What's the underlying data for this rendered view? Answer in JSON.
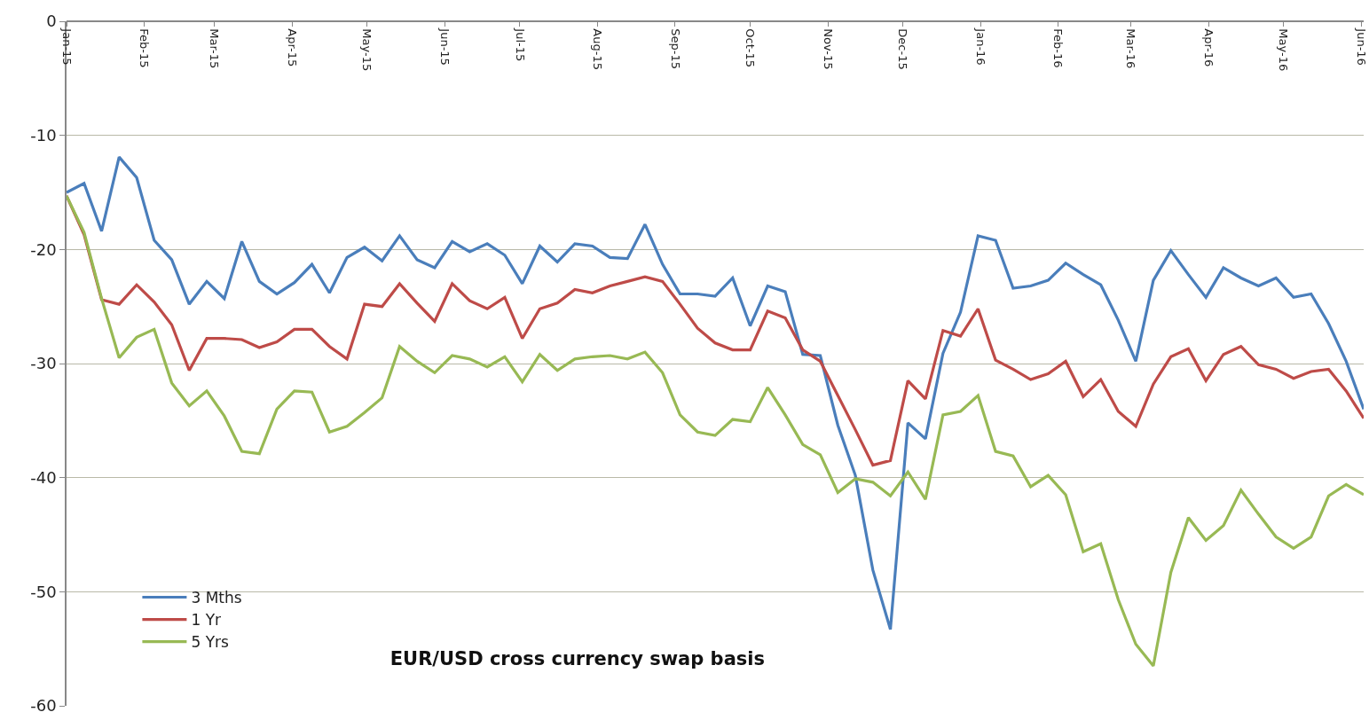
{
  "chart_data": {
    "type": "line",
    "title": "EUR/USD cross currency swap basis",
    "x": [
      "2015-01-01",
      "2015-01-08",
      "2015-01-15",
      "2015-01-22",
      "2015-01-29",
      "2015-02-05",
      "2015-02-12",
      "2015-02-19",
      "2015-02-26",
      "2015-03-05",
      "2015-03-12",
      "2015-03-19",
      "2015-03-26",
      "2015-04-02",
      "2015-04-09",
      "2015-04-16",
      "2015-04-23",
      "2015-04-30",
      "2015-05-07",
      "2015-05-14",
      "2015-05-21",
      "2015-05-28",
      "2015-06-04",
      "2015-06-11",
      "2015-06-18",
      "2015-06-25",
      "2015-07-02",
      "2015-07-09",
      "2015-07-16",
      "2015-07-23",
      "2015-07-30",
      "2015-08-06",
      "2015-08-13",
      "2015-08-20",
      "2015-08-27",
      "2015-09-03",
      "2015-09-10",
      "2015-09-17",
      "2015-09-24",
      "2015-10-01",
      "2015-10-08",
      "2015-10-15",
      "2015-10-22",
      "2015-10-29",
      "2015-11-05",
      "2015-11-12",
      "2015-11-19",
      "2015-11-26",
      "2015-12-03",
      "2015-12-10",
      "2015-12-17",
      "2015-12-24",
      "2015-12-31",
      "2016-01-07",
      "2016-01-14",
      "2016-01-21",
      "2016-01-28",
      "2016-02-04",
      "2016-02-11",
      "2016-02-18",
      "2016-02-25",
      "2016-03-03",
      "2016-03-10",
      "2016-03-17",
      "2016-03-24",
      "2016-03-31",
      "2016-04-07",
      "2016-04-14",
      "2016-04-21",
      "2016-04-28",
      "2016-05-05",
      "2016-05-12",
      "2016-05-19",
      "2016-05-26",
      "2016-06-02"
    ],
    "series": [
      {
        "name": "3 Mths",
        "color": "#4a7ebb",
        "values": [
          -15.0,
          -14.2,
          -18.4,
          -11.9,
          -13.7,
          -19.2,
          -20.9,
          -24.8,
          -22.8,
          -24.3,
          -19.3,
          -22.8,
          -23.9,
          -22.9,
          -21.3,
          -23.8,
          -20.7,
          -19.8,
          -21.0,
          -18.8,
          -20.9,
          -21.6,
          -19.3,
          -20.2,
          -19.5,
          -20.5,
          -23.0,
          -19.7,
          -21.1,
          -19.5,
          -19.7,
          -20.7,
          -20.8,
          -17.8,
          -21.3,
          -23.9,
          -23.9,
          -24.1,
          -22.5,
          -26.7,
          -23.2,
          -23.7,
          -29.2,
          -29.3,
          -35.4,
          -39.8,
          -48.1,
          -53.3,
          -35.2,
          -36.6,
          -29.1,
          -25.5,
          -18.8,
          -19.2,
          -23.4,
          -23.2,
          -22.7,
          -21.2,
          -22.2,
          -23.1,
          -26.2,
          -29.8,
          -22.7,
          -20.1,
          -22.2,
          -24.2,
          -21.6,
          -22.5,
          -23.2,
          -22.5,
          -24.2,
          -23.9,
          -26.5,
          -29.8,
          -34.0
        ]
      },
      {
        "name": "1 Yr",
        "color": "#be4b48",
        "values": [
          -15.3,
          -18.7,
          -24.4,
          -24.8,
          -23.1,
          -24.6,
          -26.6,
          -30.6,
          -27.8,
          -27.8,
          -27.9,
          -28.6,
          -28.1,
          -27.0,
          -27.0,
          -28.5,
          -29.6,
          -24.8,
          -25.0,
          -23.0,
          -24.7,
          -26.3,
          -23.0,
          -24.5,
          -25.2,
          -24.2,
          -27.8,
          -25.2,
          -24.7,
          -23.5,
          -23.8,
          -23.2,
          -22.8,
          -22.4,
          -22.8,
          -24.8,
          -26.9,
          -28.2,
          -28.8,
          -28.8,
          -25.4,
          -26.0,
          -28.8,
          -29.8,
          -32.8,
          -35.8,
          -38.9,
          -38.5,
          -31.5,
          -33.1,
          -27.1,
          -27.6,
          -25.2,
          -29.7,
          -30.5,
          -31.4,
          -30.9,
          -29.8,
          -32.9,
          -31.4,
          -34.2,
          -35.5,
          -31.8,
          -29.4,
          -28.7,
          -31.5,
          -29.2,
          -28.5,
          -30.1,
          -30.5,
          -31.3,
          -30.7,
          -30.5,
          -32.4,
          -34.8
        ]
      },
      {
        "name": "5 Yrs",
        "color": "#98b954",
        "values": [
          -15.3,
          -18.5,
          -24.3,
          -29.5,
          -27.7,
          -27.0,
          -31.7,
          -33.7,
          -32.4,
          -34.6,
          -37.7,
          -37.9,
          -34.0,
          -32.4,
          -32.5,
          -36.0,
          -35.5,
          -34.3,
          -33.0,
          -28.5,
          -29.8,
          -30.8,
          -29.3,
          -29.6,
          -30.3,
          -29.4,
          -31.6,
          -29.2,
          -30.6,
          -29.6,
          -29.4,
          -29.3,
          -29.6,
          -29.0,
          -30.8,
          -34.5,
          -36.0,
          -36.3,
          -34.9,
          -35.1,
          -32.1,
          -34.5,
          -37.1,
          -38.0,
          -41.3,
          -40.1,
          -40.4,
          -41.6,
          -39.5,
          -41.9,
          -34.5,
          -34.2,
          -32.8,
          -37.7,
          -38.1,
          -40.8,
          -39.8,
          -41.5,
          -46.5,
          -45.8,
          -50.7,
          -54.6,
          -56.5,
          -48.3,
          -43.5,
          -45.5,
          -44.2,
          -41.1,
          -43.2,
          -45.2,
          -46.2,
          -45.2,
          -41.6,
          -40.6,
          -41.5
        ]
      }
    ],
    "xlim": [
      "2015-01-01",
      "2016-06-02"
    ],
    "xticks": [
      {
        "value": "2015-01-01",
        "label": "Jan-15"
      },
      {
        "value": "2015-02-01",
        "label": "Feb-15"
      },
      {
        "value": "2015-03-01",
        "label": "Mar-15"
      },
      {
        "value": "2015-04-01",
        "label": "Apr-15"
      },
      {
        "value": "2015-05-01",
        "label": "May-15"
      },
      {
        "value": "2015-06-01",
        "label": "Jun-15"
      },
      {
        "value": "2015-07-01",
        "label": "Jul-15"
      },
      {
        "value": "2015-08-01",
        "label": "Aug-15"
      },
      {
        "value": "2015-09-01",
        "label": "Sep-15"
      },
      {
        "value": "2015-10-01",
        "label": "Oct-15"
      },
      {
        "value": "2015-11-01",
        "label": "Nov-15"
      },
      {
        "value": "2015-12-01",
        "label": "Dec-15"
      },
      {
        "value": "2016-01-01",
        "label": "Jan-16"
      },
      {
        "value": "2016-02-01",
        "label": "Feb-16"
      },
      {
        "value": "2016-03-01",
        "label": "Mar-16"
      },
      {
        "value": "2016-04-01",
        "label": "Apr-16"
      },
      {
        "value": "2016-05-01",
        "label": "May-16"
      },
      {
        "value": "2016-06-01",
        "label": "Jun-16"
      }
    ],
    "ylim": [
      -60,
      0
    ],
    "yticks": [
      -60,
      -50,
      -40,
      -30,
      -20,
      -10,
      0
    ],
    "grid": "y",
    "legend": "bottom left",
    "marker": "none",
    "line_style": "solid"
  }
}
